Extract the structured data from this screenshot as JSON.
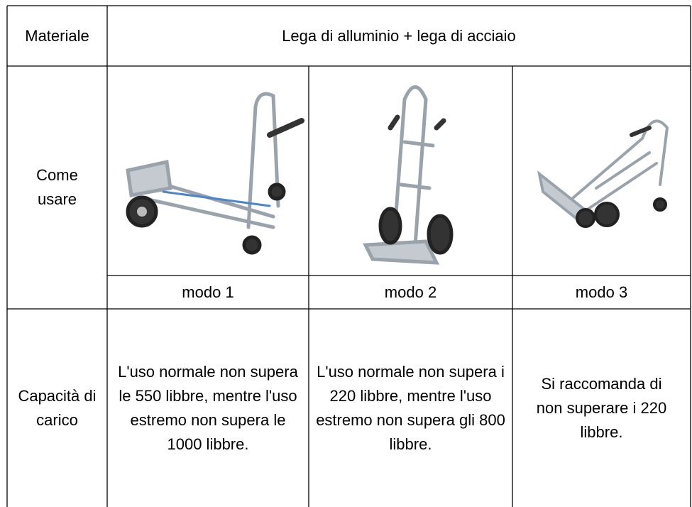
{
  "table": {
    "material": {
      "label": "Materiale",
      "value": "Lega di alluminio + lega di acciaio"
    },
    "usage": {
      "label": "Come usare",
      "modes": [
        "modo 1",
        "modo 2",
        "modo 3"
      ]
    },
    "capacity": {
      "label": "Capacità di carico",
      "values": [
        "L'uso normale non supera le 550 libbre, mentre l'uso estremo non supera le 1000 libbre.",
        "L'uso normale non supera i 220 libbre, mentre l'uso estremo non supera gli 800 libbre.",
        "Si raccomanda di non superare i 220 libbre."
      ]
    }
  }
}
